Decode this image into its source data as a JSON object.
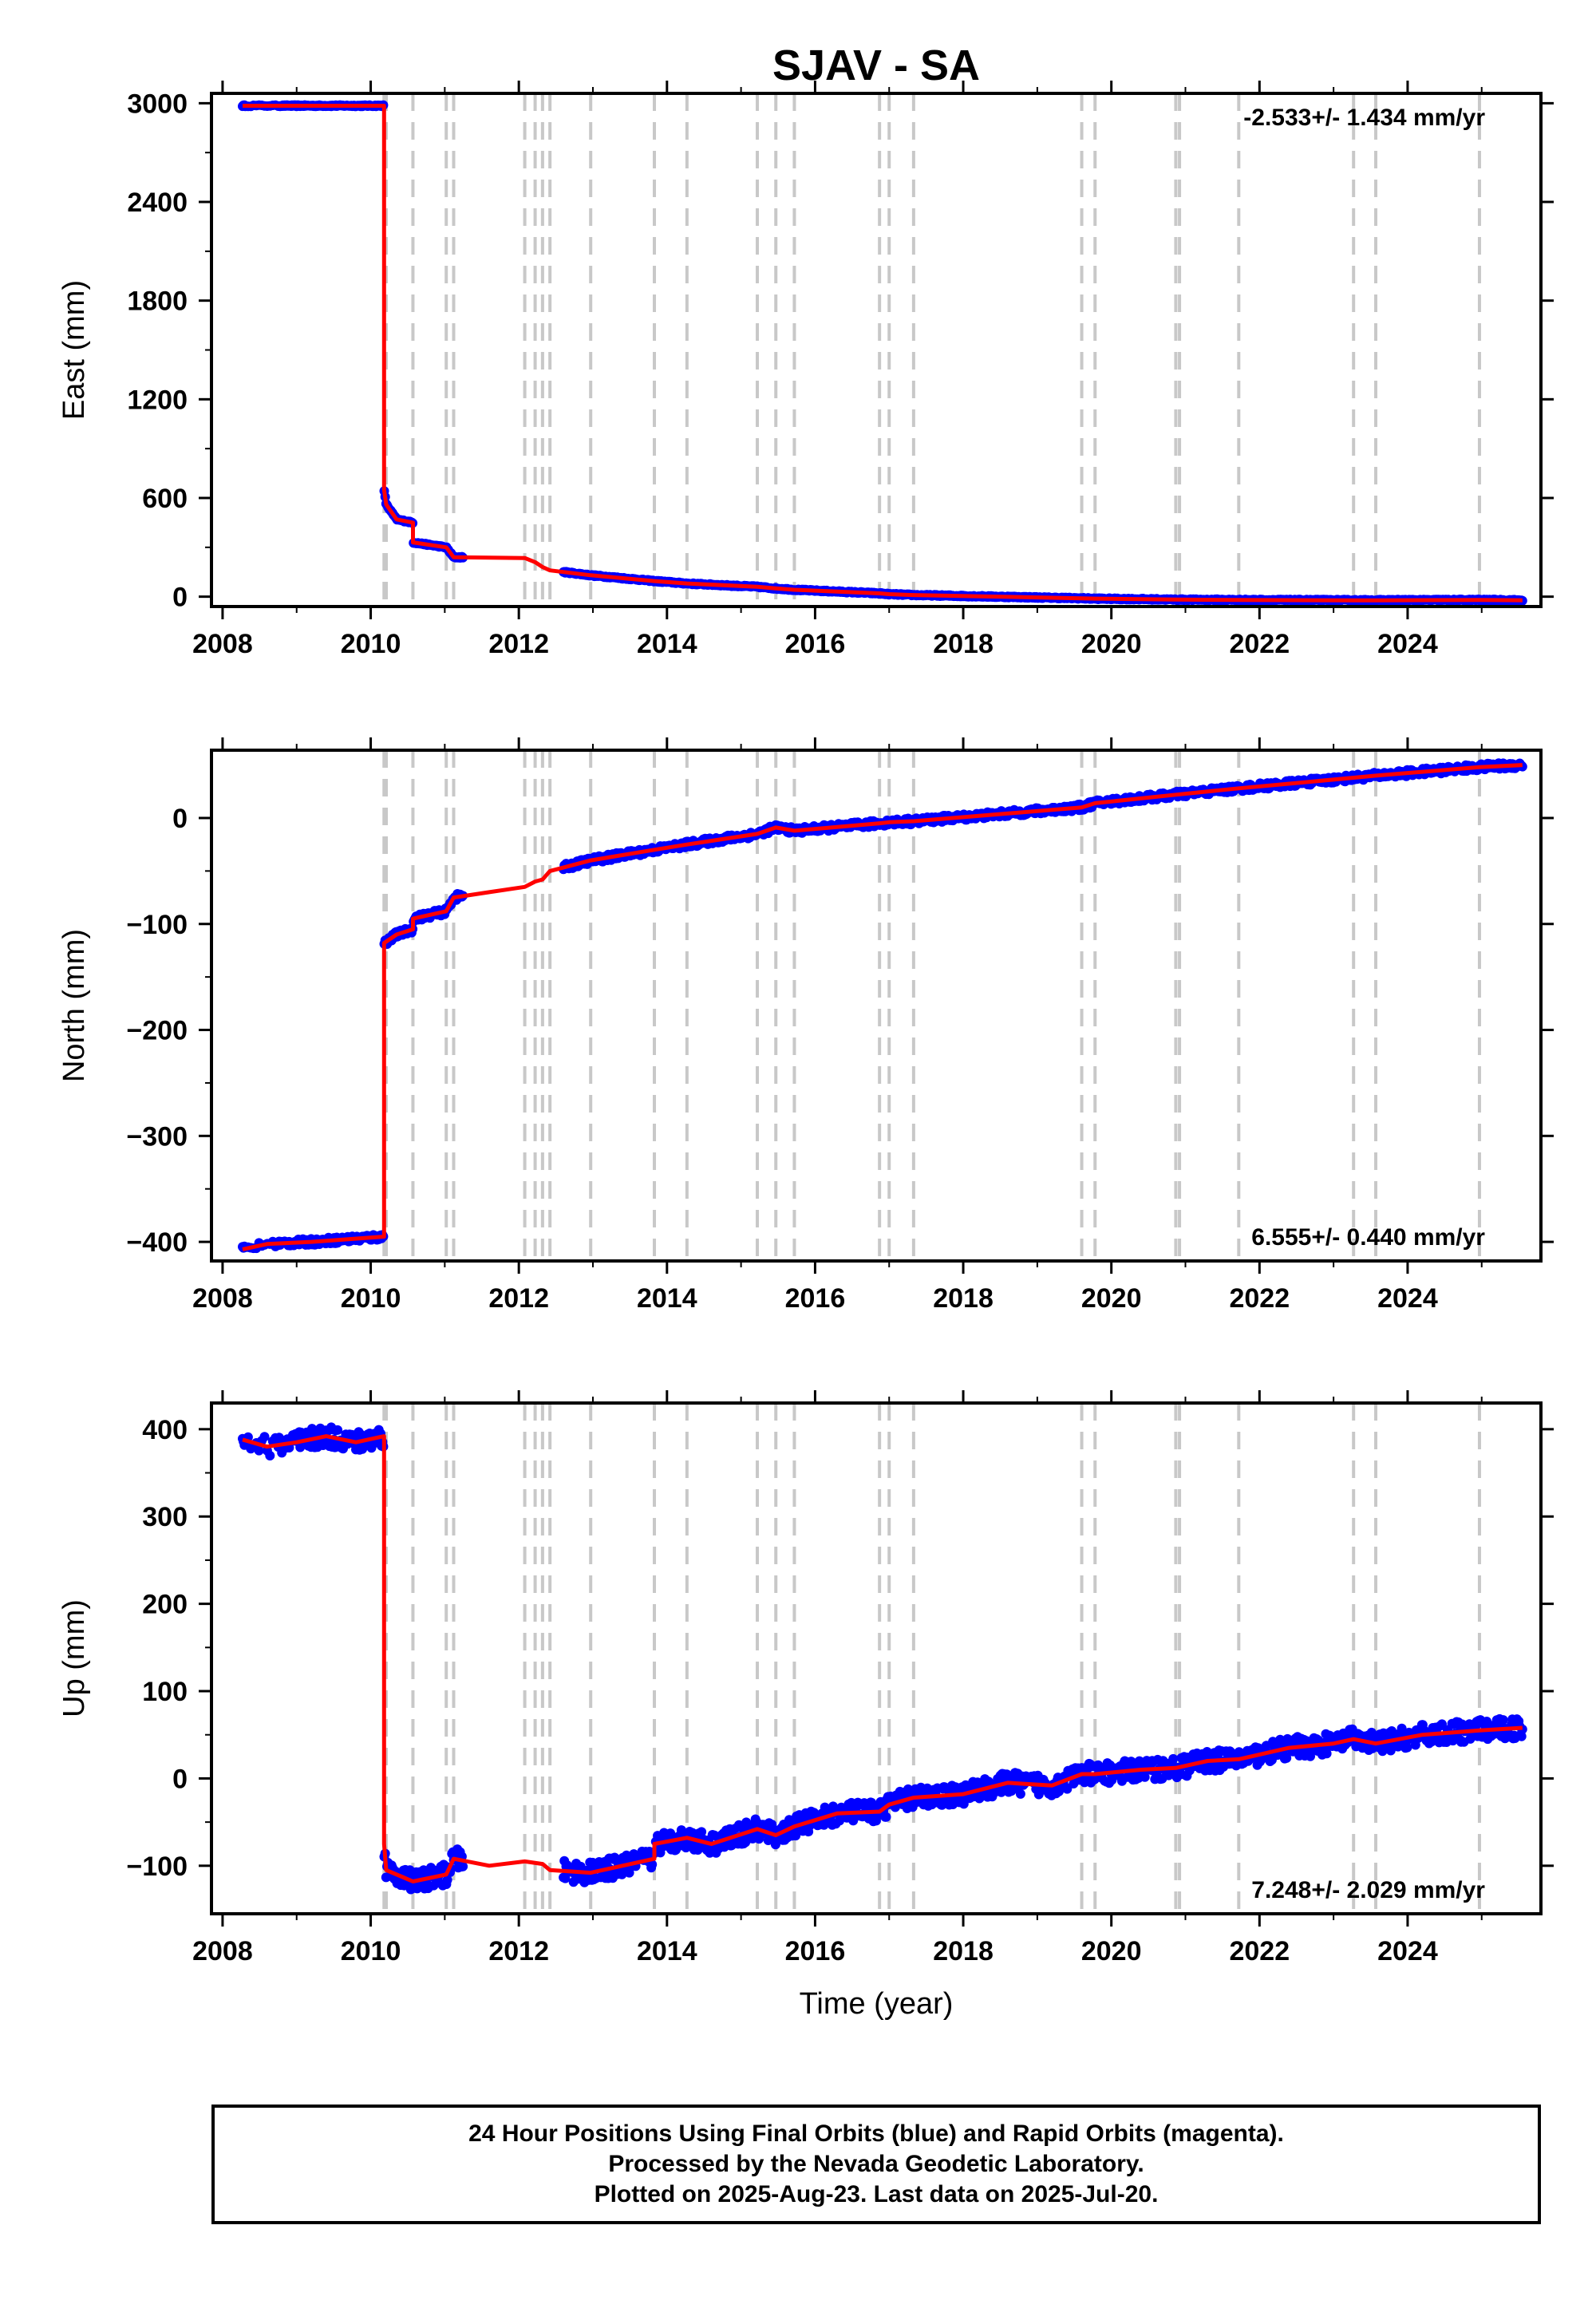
{
  "chart_data": {
    "type": "scatter",
    "title": "SJAV - SA",
    "xlabel": "Time (year)",
    "xlim": [
      2007.85,
      2025.8
    ],
    "x_ticks": [
      2008,
      2010,
      2012,
      2014,
      2016,
      2018,
      2020,
      2022,
      2024
    ],
    "colors": {
      "data": "#0000ff",
      "model": "#ff0000",
      "steps": "#c8c8c8"
    },
    "step_epochs": [
      2010.18,
      2010.21,
      2010.57,
      2011.02,
      2011.12,
      2012.08,
      2012.22,
      2012.32,
      2012.42,
      2012.97,
      2013.83,
      2014.27,
      2015.22,
      2015.47,
      2015.72,
      2016.87,
      2017.0,
      2017.33,
      2019.6,
      2019.78,
      2020.87,
      2020.92,
      2021.72,
      2023.27,
      2023.57,
      2024.97
    ],
    "panels": [
      {
        "name": "east",
        "ylabel": "East (mm)",
        "ylim": [
          -60,
          3060
        ],
        "y_ticks": [
          0,
          600,
          1200,
          1800,
          2400,
          3000
        ],
        "rate": "-2.533+/- 1.434 mm/yr",
        "rate_position": "top-right",
        "data_range": [
          2008.27,
          2025.55
        ],
        "scatter": 4,
        "model": [
          [
            2008.27,
            2985
          ],
          [
            2010.18,
            2985
          ],
          [
            2010.18,
            650
          ],
          [
            2010.21,
            560
          ],
          [
            2010.35,
            470
          ],
          [
            2010.57,
            450
          ],
          [
            2010.57,
            330
          ],
          [
            2011.02,
            300
          ],
          [
            2011.12,
            240
          ],
          [
            2012.08,
            235
          ],
          [
            2012.22,
            210
          ],
          [
            2012.32,
            180
          ],
          [
            2012.42,
            160
          ],
          [
            2012.97,
            130
          ],
          [
            2013.83,
            95
          ],
          [
            2014.27,
            80
          ],
          [
            2015.22,
            60
          ],
          [
            2015.47,
            50
          ],
          [
            2015.72,
            42
          ],
          [
            2016.87,
            20
          ],
          [
            2017.0,
            15
          ],
          [
            2017.33,
            10
          ],
          [
            2019.6,
            -10
          ],
          [
            2019.78,
            -12
          ],
          [
            2020.87,
            -18
          ],
          [
            2021.72,
            -20
          ],
          [
            2023.27,
            -22
          ],
          [
            2023.57,
            -22
          ],
          [
            2024.97,
            -20
          ],
          [
            2025.55,
            -22
          ]
        ]
      },
      {
        "name": "north",
        "ylabel": "North (mm)",
        "ylim": [
          -418,
          64
        ],
        "y_ticks": [
          -400,
          -300,
          -200,
          -100,
          0
        ],
        "rate": "6.555+/- 0.440 mm/yr",
        "rate_position": "bottom-right",
        "data_range": [
          2008.27,
          2025.55
        ],
        "scatter": 3,
        "model": [
          [
            2008.27,
            -407
          ],
          [
            2008.6,
            -402
          ],
          [
            2009.2,
            -400
          ],
          [
            2010.18,
            -395
          ],
          [
            2010.18,
            -118
          ],
          [
            2010.35,
            -110
          ],
          [
            2010.57,
            -105
          ],
          [
            2010.57,
            -95
          ],
          [
            2011.02,
            -88
          ],
          [
            2011.12,
            -75
          ],
          [
            2011.6,
            -70
          ],
          [
            2012.08,
            -65
          ],
          [
            2012.22,
            -60
          ],
          [
            2012.32,
            -58
          ],
          [
            2012.42,
            -50
          ],
          [
            2012.97,
            -40
          ],
          [
            2013.83,
            -30
          ],
          [
            2014.27,
            -25
          ],
          [
            2015.22,
            -15
          ],
          [
            2015.47,
            -9
          ],
          [
            2015.72,
            -12
          ],
          [
            2016.87,
            -5
          ],
          [
            2017.0,
            -4
          ],
          [
            2017.33,
            -3
          ],
          [
            2019.6,
            10
          ],
          [
            2019.78,
            14
          ],
          [
            2020.87,
            22
          ],
          [
            2021.72,
            28
          ],
          [
            2023.27,
            38
          ],
          [
            2023.57,
            40
          ],
          [
            2024.97,
            48
          ],
          [
            2025.55,
            50
          ]
        ]
      },
      {
        "name": "up",
        "ylabel": "Up (mm)",
        "ylim": [
          -155,
          430
        ],
        "y_ticks": [
          -100,
          0,
          100,
          200,
          300,
          400
        ],
        "rate": "7.248+/- 2.029 mm/yr",
        "rate_position": "bottom-right",
        "data_range": [
          2008.27,
          2025.55
        ],
        "scatter": 12,
        "model": [
          [
            2008.27,
            388
          ],
          [
            2008.6,
            380
          ],
          [
            2009.0,
            385
          ],
          [
            2009.4,
            392
          ],
          [
            2009.8,
            385
          ],
          [
            2010.18,
            392
          ],
          [
            2010.18,
            -75
          ],
          [
            2010.21,
            -105
          ],
          [
            2010.57,
            -118
          ],
          [
            2011.02,
            -110
          ],
          [
            2011.12,
            -92
          ],
          [
            2011.6,
            -100
          ],
          [
            2012.08,
            -95
          ],
          [
            2012.32,
            -98
          ],
          [
            2012.42,
            -105
          ],
          [
            2012.97,
            -108
          ],
          [
            2013.4,
            -100
          ],
          [
            2013.83,
            -92
          ],
          [
            2013.83,
            -75
          ],
          [
            2014.27,
            -68
          ],
          [
            2014.6,
            -75
          ],
          [
            2015.22,
            -58
          ],
          [
            2015.47,
            -65
          ],
          [
            2015.72,
            -55
          ],
          [
            2016.3,
            -40
          ],
          [
            2016.87,
            -38
          ],
          [
            2017.0,
            -30
          ],
          [
            2017.33,
            -22
          ],
          [
            2018.0,
            -18
          ],
          [
            2018.6,
            -5
          ],
          [
            2019.2,
            -8
          ],
          [
            2019.6,
            5
          ],
          [
            2019.78,
            5
          ],
          [
            2020.4,
            10
          ],
          [
            2020.87,
            12
          ],
          [
            2021.3,
            20
          ],
          [
            2021.72,
            22
          ],
          [
            2022.4,
            35
          ],
          [
            2023.0,
            40
          ],
          [
            2023.27,
            45
          ],
          [
            2023.57,
            40
          ],
          [
            2024.2,
            50
          ],
          [
            2024.97,
            55
          ],
          [
            2025.55,
            58
          ]
        ]
      }
    ],
    "footer": [
      "24 Hour Positions Using Final Orbits (blue) and Rapid Orbits (magenta).",
      "Processed by the Nevada Geodetic Laboratory.",
      "Plotted on 2025-Aug-23. Last data on 2025-Jul-20."
    ]
  }
}
